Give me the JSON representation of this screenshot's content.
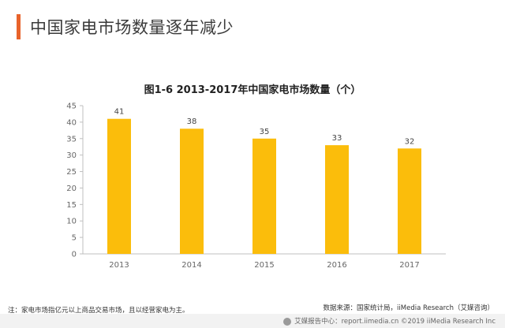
{
  "heading": "中国家电市场数量逐年减少",
  "chart_data": {
    "type": "bar",
    "title": "图1-6 2013-2017年中国家电市场数量（个）",
    "categories": [
      "2013",
      "2014",
      "2015",
      "2016",
      "2017"
    ],
    "values": [
      41,
      38,
      35,
      33,
      32
    ],
    "ylim": [
      0,
      45
    ],
    "yticks": [
      0,
      5,
      10,
      15,
      20,
      25,
      30,
      35,
      40,
      45
    ],
    "grid": false,
    "bar_color": "#fbbd0b",
    "xlabel": "",
    "ylabel": ""
  },
  "note": "注：家电市场指亿元以上商品交易市场，且以经营家电为主。",
  "source": "数据来源：国家统计局，iiMedia Research（艾媒咨询）",
  "footer": "艾媒报告中心：report.iimedia.cn ©2019  iiMedia Research Inc",
  "colors": {
    "accent": "#e8632b",
    "bar": "#fbbd0b"
  }
}
